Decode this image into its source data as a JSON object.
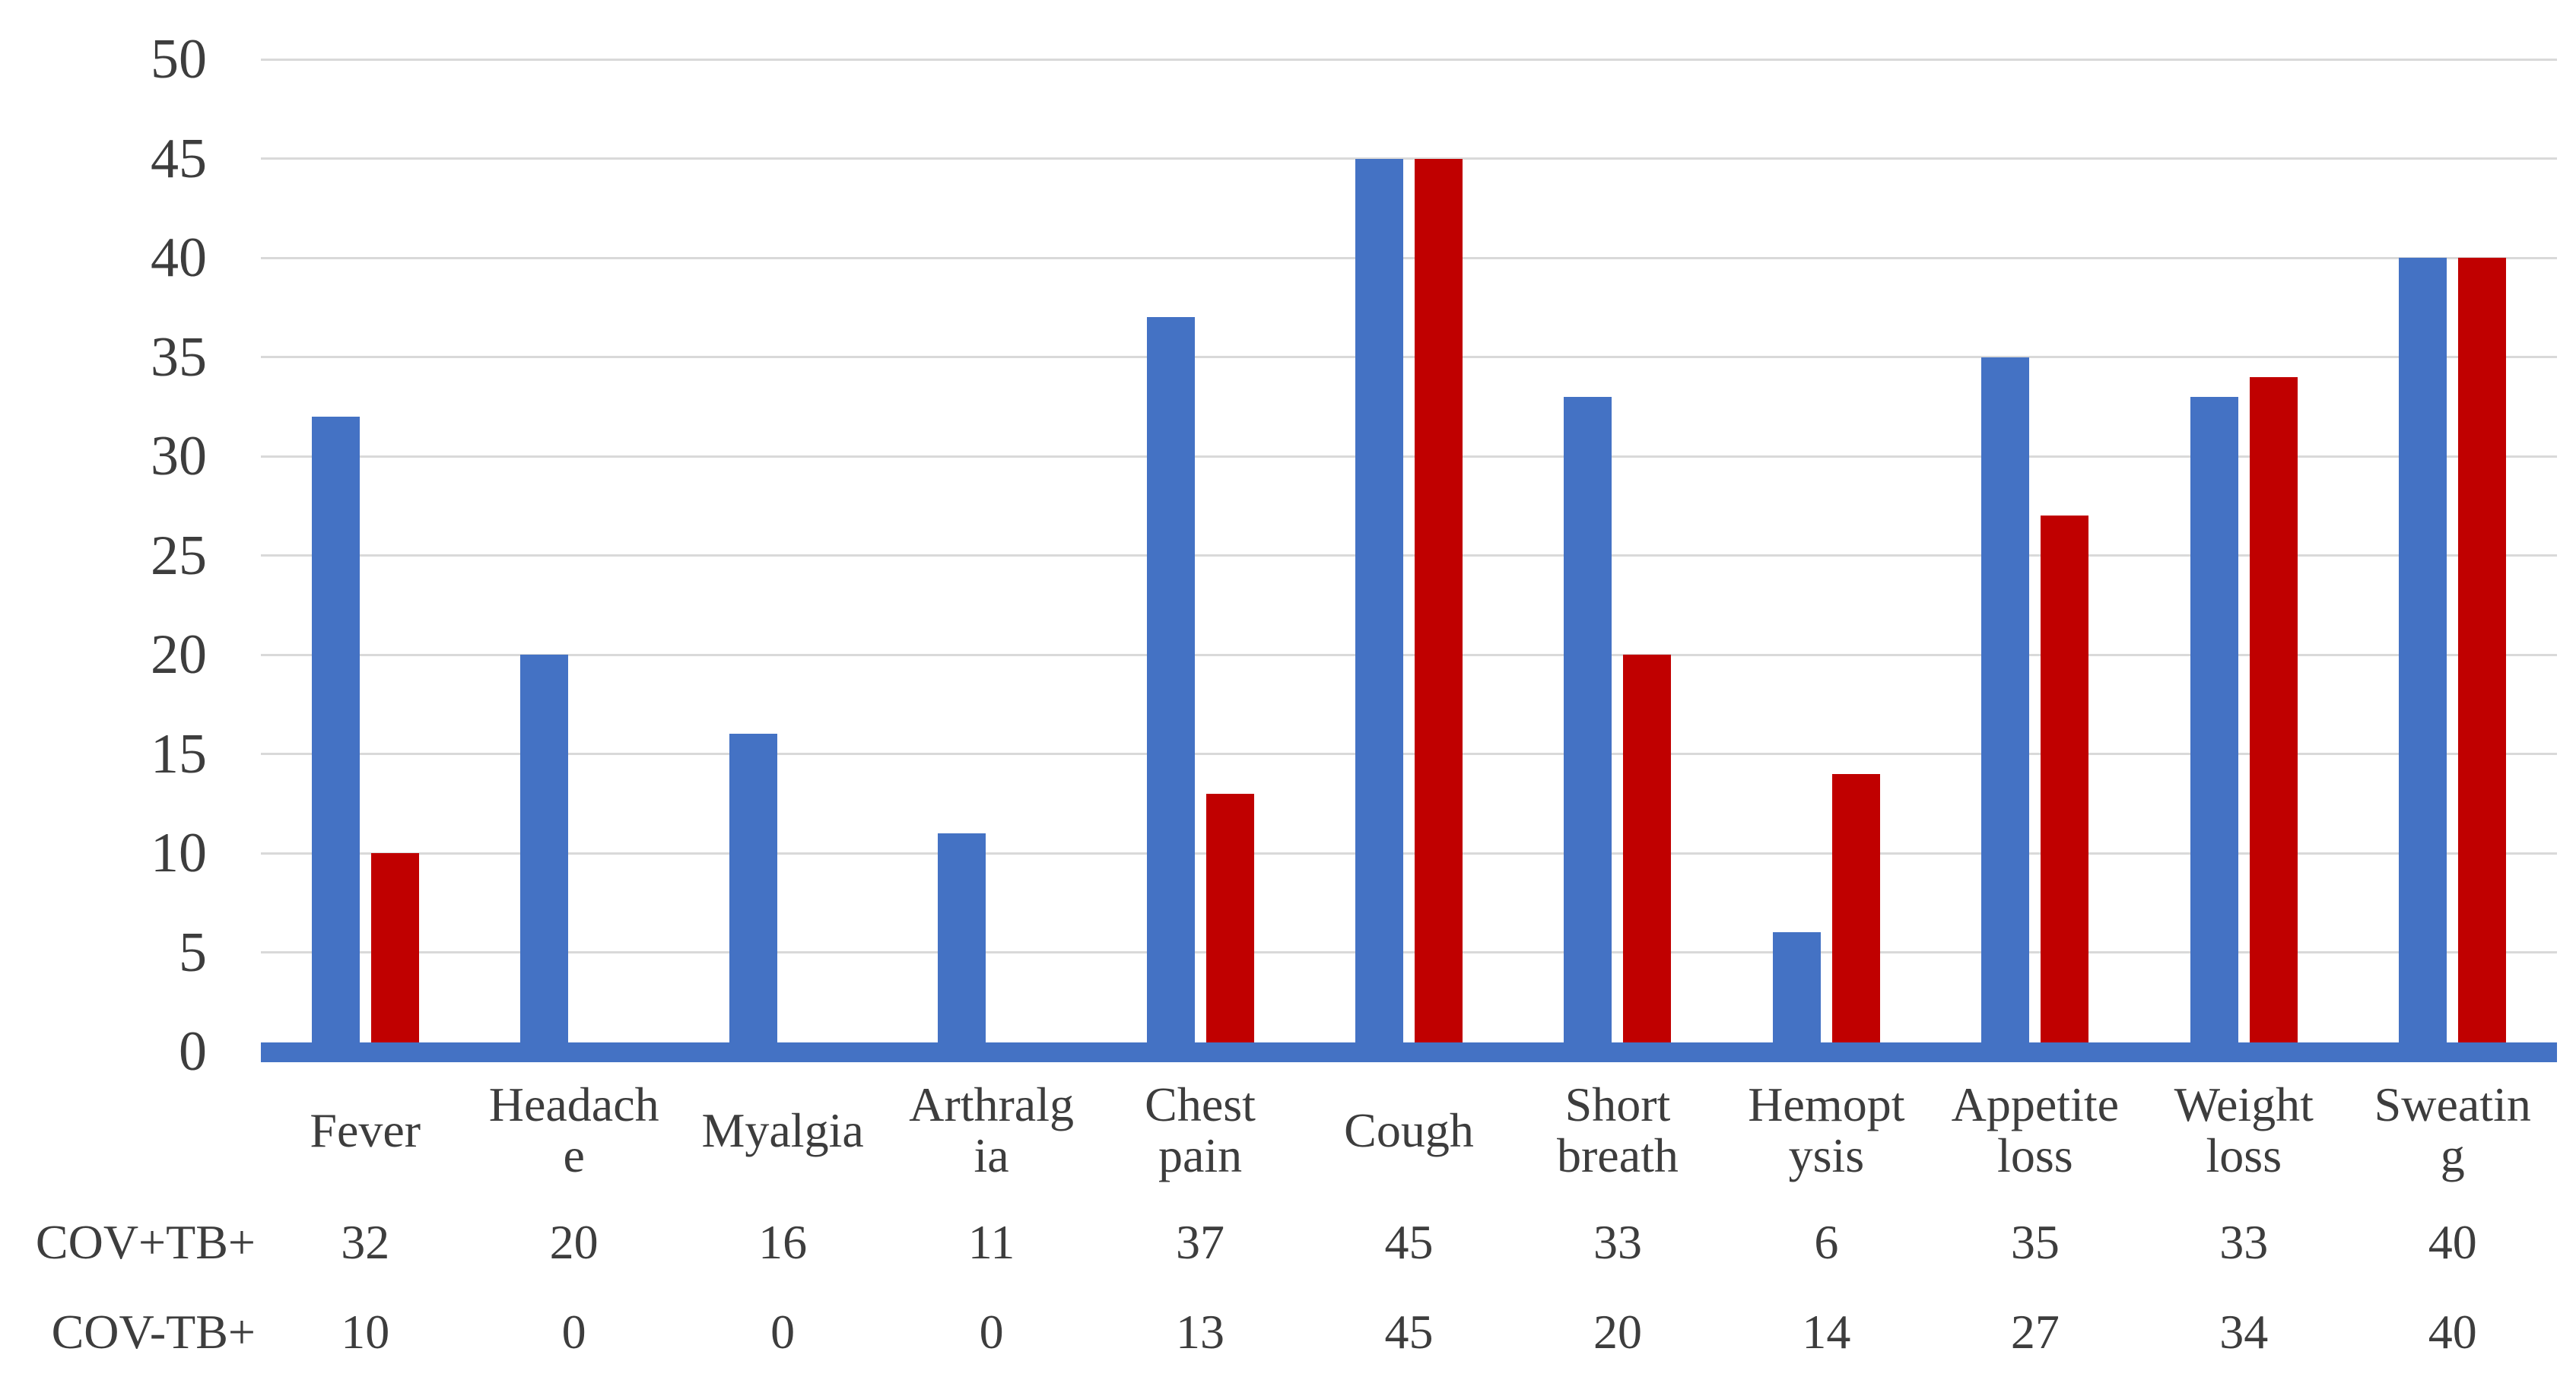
{
  "figure": {
    "background": "#ffffff"
  },
  "chart_data": {
    "type": "bar",
    "title": "",
    "xlabel": "",
    "ylabel": "",
    "categories": [
      "Fever",
      "Headache",
      "Myalgia",
      "Arthralgia",
      "Chest pain",
      "Cough",
      "Short breath",
      "Hemoptysis",
      "Appetite loss",
      "Weight loss",
      "Sweating"
    ],
    "category_display_lines": [
      [
        "Fever"
      ],
      [
        "Headach",
        "e"
      ],
      [
        "Myalgia"
      ],
      [
        "Arthralg",
        "ia"
      ],
      [
        "Chest",
        "pain"
      ],
      [
        "Cough"
      ],
      [
        "Short",
        "breath"
      ],
      [
        "Hemopt",
        "ysis"
      ],
      [
        "Appetite",
        "loss"
      ],
      [
        "Weight",
        "loss"
      ],
      [
        "Sweatin",
        "g"
      ]
    ],
    "series": [
      {
        "name": "COV+TB+",
        "color": "#4472C4",
        "values": [
          32,
          20,
          16,
          11,
          37,
          45,
          33,
          6,
          35,
          33,
          40
        ]
      },
      {
        "name": "COV-TB+",
        "color": "#C00000",
        "values": [
          10,
          0,
          0,
          0,
          13,
          45,
          20,
          14,
          27,
          34,
          40
        ]
      }
    ],
    "ylim": [
      0,
      50
    ],
    "yticks": [
      0,
      5,
      10,
      15,
      20,
      25,
      30,
      35,
      40,
      45,
      50
    ],
    "grid": true,
    "gridline_color": "#D9D9D9",
    "axis_line_color": "#4472C4",
    "text_color": "#3D3D3D",
    "legend_position": "none",
    "data_table_shown": true
  }
}
